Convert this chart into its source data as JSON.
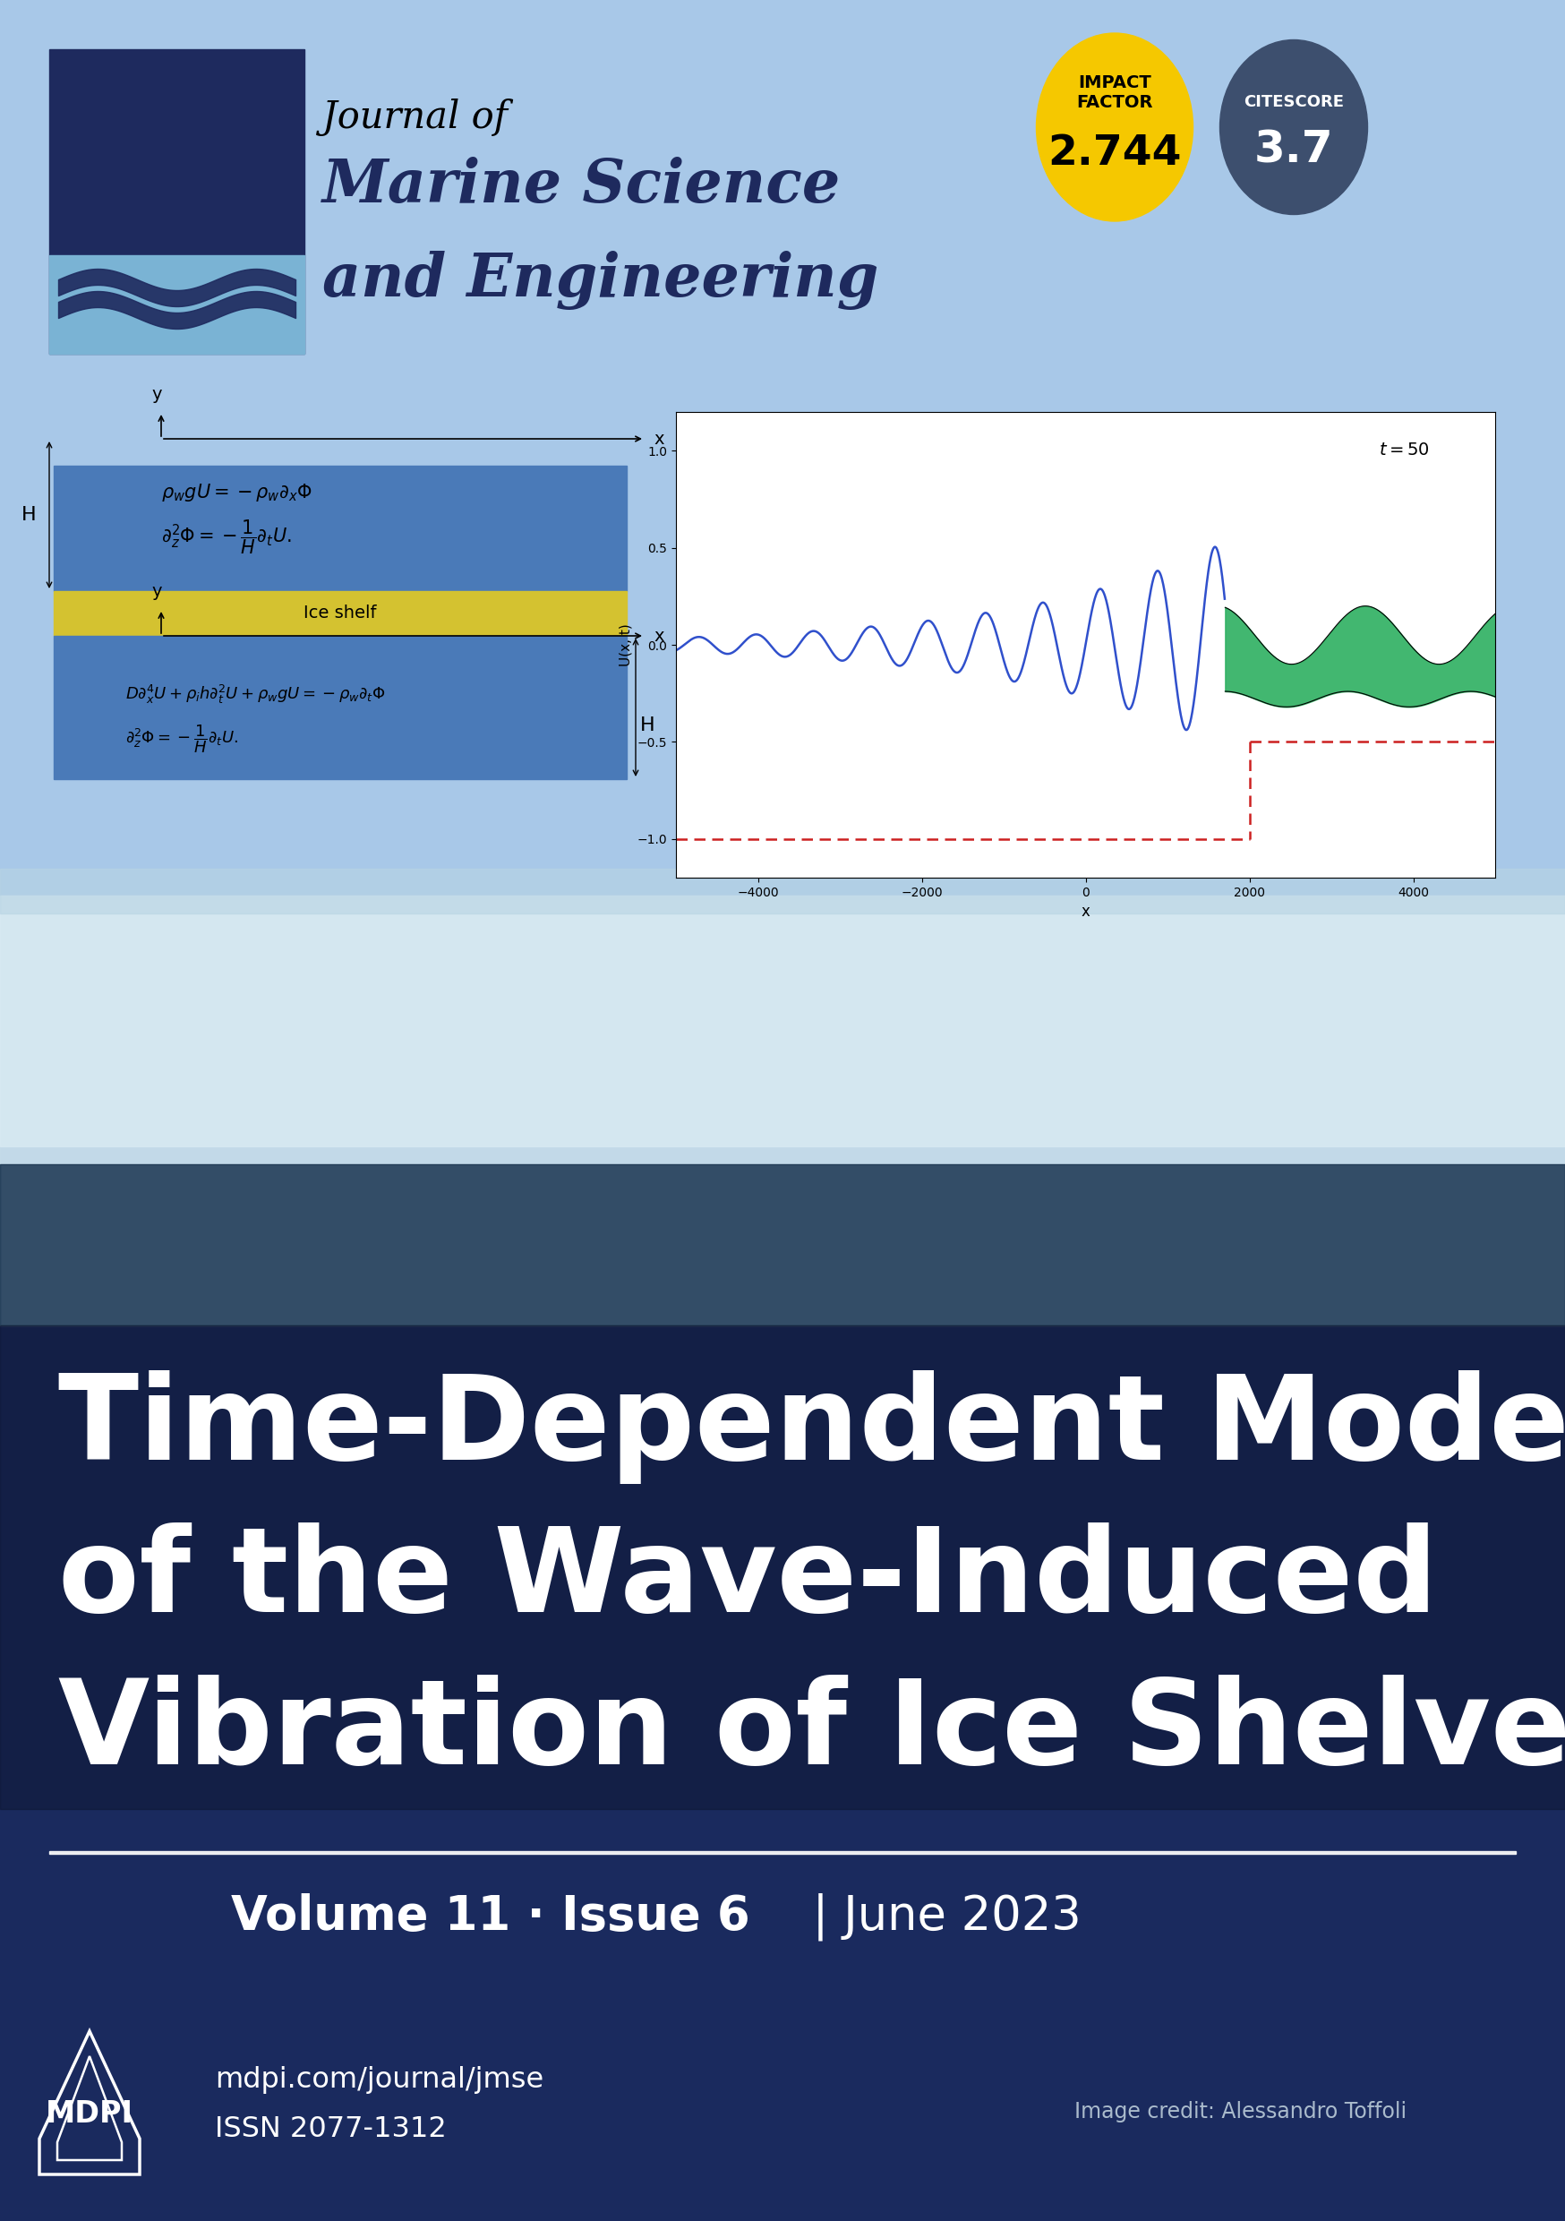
{
  "bg_top_color": "#a8c8e8",
  "bg_bottom_color": "#1a2a5e",
  "logo_rect_dark": "#1e2a5e",
  "logo_rect_light": "#7ab3d4",
  "journal_line1": "Journal of",
  "journal_line2": "Marine Science",
  "journal_line3": "and Engineering",
  "impact_circle_color": "#f5c800",
  "citescore_circle_color": "#3d4f6e",
  "impact_label": "IMPACT\nFACTOR",
  "impact_value": "2.744",
  "citescore_label": "CITESCORE",
  "citescore_value": "3.7",
  "article_title_line1": "Time-Dependent Modelling",
  "article_title_line2": "of the Wave-Induced",
  "article_title_line3": "Vibration of Ice Shelves",
  "volume_bold": "Volume 11 · Issue 6",
  "date_normal": "| June 2023",
  "mdpi_url": "mdpi.com/journal/jmse",
  "issn": "ISSN 2077-1312",
  "image_credit": "Image credit: Alessandro Toffoli",
  "diag_blue": "#4a7ab8",
  "diag_yellow": "#d4c230",
  "white": "#ffffff",
  "black": "#000000",
  "plot_green": "#2db060",
  "plot_blue_line": "#3050cc",
  "plot_red_dash": "#cc2020"
}
